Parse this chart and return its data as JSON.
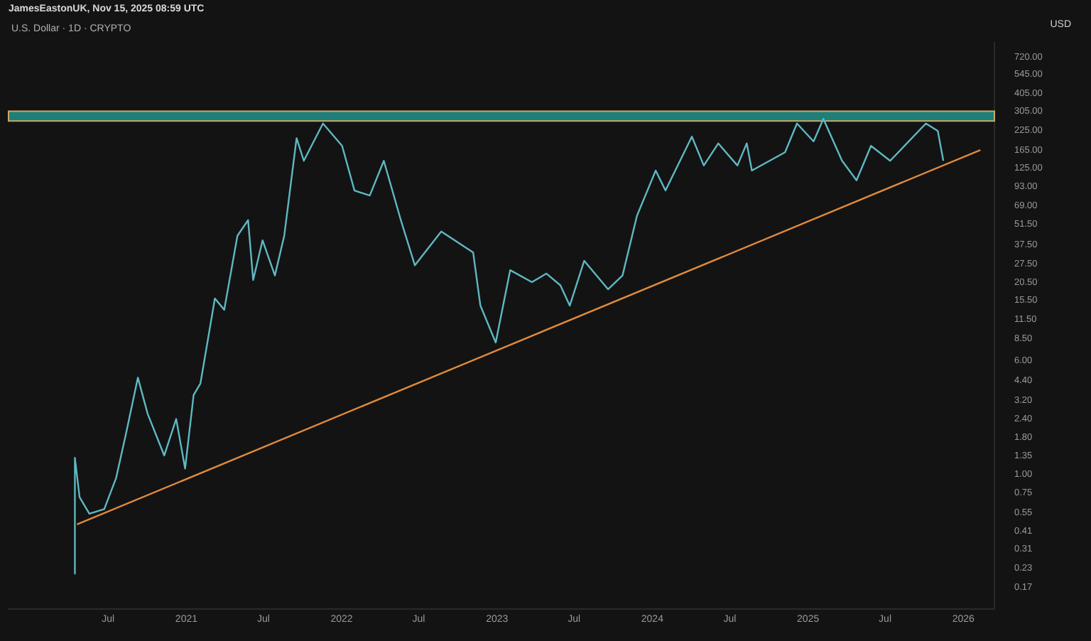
{
  "chart_data": {
    "type": "line",
    "title": "U.S. Dollar · 1D · CRYPTO",
    "ylabel": "USD",
    "annotations": [
      "JamesEastonUK, Nov 15, 2025 08:59 UTC"
    ],
    "log": "y",
    "grid": false,
    "legend": false,
    "marker": "none",
    "line_style": "solid",
    "xlim": [
      "2019-11-10",
      "2026-03-15"
    ],
    "xticks": [
      {
        "value": "2020-07-01",
        "label": "Jul"
      },
      {
        "value": "2021-01-01",
        "label": "2021"
      },
      {
        "value": "2021-07-01",
        "label": "Jul"
      },
      {
        "value": "2022-01-01",
        "label": "2022"
      },
      {
        "value": "2022-07-01",
        "label": "Jul"
      },
      {
        "value": "2023-01-01",
        "label": "2023"
      },
      {
        "value": "2023-07-01",
        "label": "Jul"
      },
      {
        "value": "2024-01-01",
        "label": "2024"
      },
      {
        "value": "2024-07-01",
        "label": "Jul"
      },
      {
        "value": "2025-01-01",
        "label": "2025"
      },
      {
        "value": "2025-07-01",
        "label": "Jul"
      },
      {
        "value": "2026-01-01",
        "label": "2026"
      }
    ],
    "ylim": [
      0.12,
      900
    ],
    "yticks": [
      {
        "value": 0.17,
        "label": "0.17"
      },
      {
        "value": 0.23,
        "label": "0.23"
      },
      {
        "value": 0.31,
        "label": "0.31"
      },
      {
        "value": 0.41,
        "label": "0.41"
      },
      {
        "value": 0.55,
        "label": "0.55"
      },
      {
        "value": 0.75,
        "label": "0.75"
      },
      {
        "value": 1,
        "label": "1.00"
      },
      {
        "value": 1.35,
        "label": "1.35"
      },
      {
        "value": 1.8,
        "label": "1.80"
      },
      {
        "value": 2.4,
        "label": "2.40"
      },
      {
        "value": 3.2,
        "label": "3.20"
      },
      {
        "value": 4.4,
        "label": "4.40"
      },
      {
        "value": 6,
        "label": "6.00"
      },
      {
        "value": 8.5,
        "label": "8.50"
      },
      {
        "value": 11.5,
        "label": "11.50"
      },
      {
        "value": 15.5,
        "label": "15.50"
      },
      {
        "value": 20.5,
        "label": "20.50"
      },
      {
        "value": 27.5,
        "label": "27.50"
      },
      {
        "value": 37.5,
        "label": "37.50"
      },
      {
        "value": 51.5,
        "label": "51.50"
      },
      {
        "value": 69,
        "label": "69.00"
      },
      {
        "value": 93,
        "label": "93.00"
      },
      {
        "value": 125,
        "label": "125.00"
      },
      {
        "value": 165,
        "label": "165.00"
      },
      {
        "value": 225,
        "label": "225.00"
      },
      {
        "value": 305,
        "label": "305.00"
      },
      {
        "value": 405,
        "label": "405.00"
      },
      {
        "value": 545,
        "label": "545.00"
      },
      {
        "value": 720,
        "label": "720.00"
      }
    ],
    "bands": [
      {
        "axis": "y",
        "from": 262,
        "to": 306,
        "color": "#1f7f78"
      }
    ],
    "series": [
      {
        "color": "#5fb8c2",
        "x": [
          "2020-04-13",
          "2020-04-14",
          "2020-04-25",
          "2020-05-18",
          "2020-06-22",
          "2020-07-20",
          "2020-08-12",
          "2020-09-09",
          "2020-10-02",
          "2020-11-10",
          "2020-12-08",
          "2020-12-29",
          "2021-01-18",
          "2021-02-03",
          "2021-03-09",
          "2021-03-31",
          "2021-05-01",
          "2021-05-26",
          "2021-06-07",
          "2021-06-29",
          "2021-07-28",
          "2021-08-19",
          "2021-09-17",
          "2021-10-04",
          "2021-11-18",
          "2022-01-02",
          "2022-01-31",
          "2022-03-08",
          "2022-04-10",
          "2022-05-20",
          "2022-06-22",
          "2022-08-23",
          "2022-11-06",
          "2022-11-23",
          "2022-12-29",
          "2023-02-01",
          "2023-03-24",
          "2023-04-27",
          "2023-05-30",
          "2023-06-21",
          "2023-07-25",
          "2023-09-19",
          "2023-10-23",
          "2023-11-26",
          "2024-01-09",
          "2024-02-01",
          "2024-04-03",
          "2024-05-01",
          "2024-06-04",
          "2024-07-19",
          "2024-08-10",
          "2024-08-22",
          "2024-11-08",
          "2024-12-06",
          "2025-01-14",
          "2025-02-06",
          "2025-03-22",
          "2025-04-25",
          "2025-05-29",
          "2025-07-13",
          "2025-10-05",
          "2025-11-02",
          "2025-11-15"
        ],
        "values": [
          0.21,
          1.3,
          0.7,
          0.54,
          0.58,
          0.95,
          1.9,
          4.6,
          2.6,
          1.35,
          2.4,
          1.1,
          3.5,
          4.2,
          16,
          13.4,
          43,
          55,
          21.4,
          40,
          23,
          43,
          200,
          140,
          252,
          177,
          87.7,
          81,
          140,
          55,
          27,
          46,
          33,
          14.3,
          8,
          25,
          20.7,
          23.7,
          19.7,
          14.3,
          29,
          18.5,
          23,
          59,
          120,
          87.7,
          205,
          130,
          184,
          130,
          184,
          120,
          160,
          252,
          190,
          271,
          140,
          103,
          177,
          140,
          252,
          224,
          140
        ]
      },
      {
        "type": "line",
        "color": "#e08a3c",
        "x": [
          "2020-04-19",
          "2026-02-10"
        ],
        "values": [
          0.456,
          166
        ]
      }
    ]
  }
}
